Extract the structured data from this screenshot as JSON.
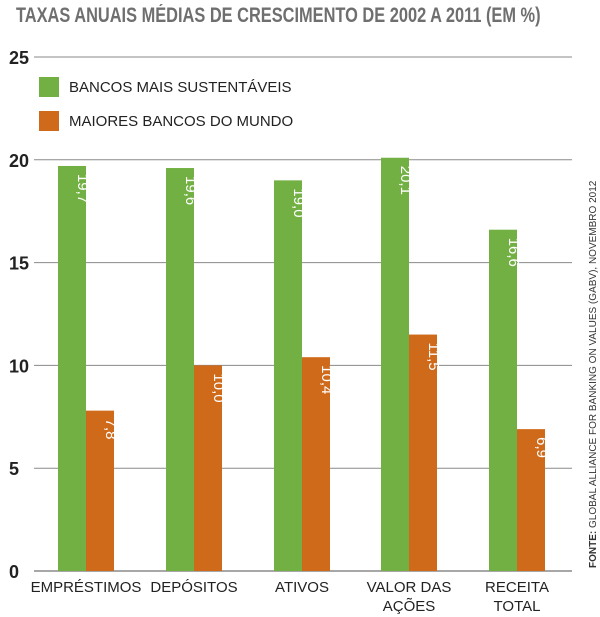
{
  "chart_data": {
    "type": "bar",
    "title": "TAXAS ANUAIS MÉDIAS DE CRESCIMENTO DE 2002 A 2011 (EM %)",
    "categories": [
      [
        "EMPRÉSTIMOS"
      ],
      [
        "DEPÓSITOS"
      ],
      [
        "ATIVOS"
      ],
      [
        "VALOR DAS",
        "AÇÕES"
      ],
      [
        "RECEITA",
        "TOTAL"
      ]
    ],
    "series": [
      {
        "name": "BANCOS MAIS SUSTENTÁVEIS",
        "color": "#72b043",
        "values": [
          19.7,
          19.6,
          19.0,
          20.1,
          16.6
        ],
        "labels": [
          "19,7",
          "19,6",
          "19,0",
          "20,1",
          "16,6"
        ]
      },
      {
        "name": "MAIORES BANCOS DO MUNDO",
        "color": "#cf6a1a",
        "values": [
          7.8,
          10.0,
          10.4,
          11.5,
          6.9
        ],
        "labels": [
          "7,8",
          "10,0",
          "10,4",
          "11,5",
          "6,9"
        ]
      }
    ],
    "ylim": [
      0,
      25
    ],
    "yticks": [
      "0",
      "5",
      "10",
      "15",
      "20",
      "25"
    ],
    "grid": true,
    "legend_position": "top-left",
    "source_label": "FONTE:",
    "source_text": "GLOBAL ALLIANCE FOR BANKING ON VALUES (GABV), NOVEMBRO 2012"
  }
}
